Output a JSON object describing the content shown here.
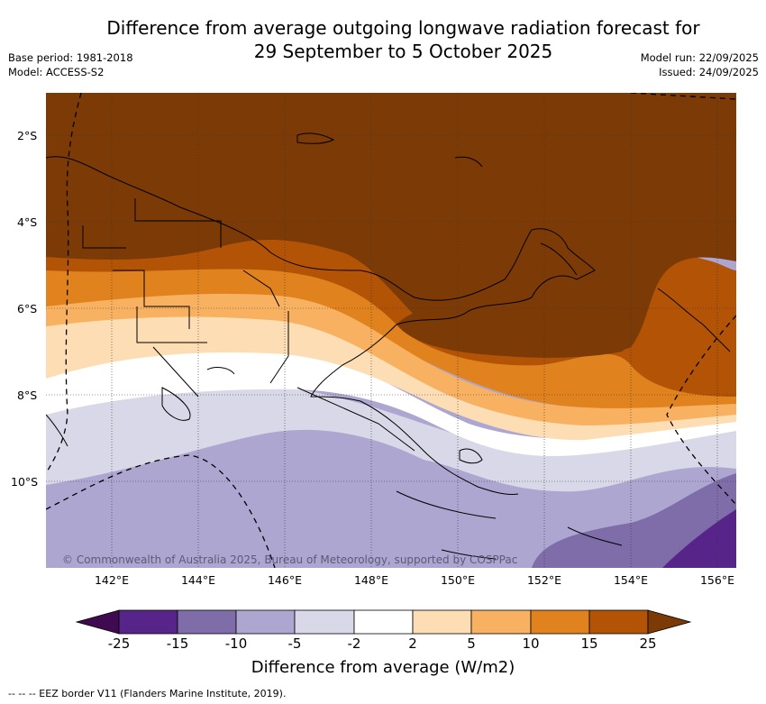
{
  "header": {
    "title_line1": "Difference from average outgoing longwave radiation forecast for",
    "title_line2": "29 September to 5 October 2025",
    "base_period": "Base period: 1981-2018",
    "model": "Model: ACCESS-S2",
    "model_run": "Model run: 22/09/2025",
    "issued": "Issued: 24/09/2025"
  },
  "map": {
    "lat_labels": [
      "2°S",
      "4°S",
      "6°S",
      "8°S",
      "10°S"
    ],
    "lon_labels": [
      "142°E",
      "144°E",
      "146°E",
      "148°E",
      "150°E",
      "152°E",
      "154°E",
      "156°E"
    ],
    "copyright": "© Commonwealth of Australia 2025, Bureau of Meteorology, supported by COSPPac"
  },
  "legend": {
    "tick_labels": [
      "-25",
      "-15",
      "-10",
      "-5",
      "-2",
      "2",
      "5",
      "10",
      "15",
      "25"
    ],
    "bin_colors": [
      "#3f0a4f",
      "#57258a",
      "#7f6daa",
      "#ada6d0",
      "#d8d8e8",
      "#ffffff",
      "#fdddb4",
      "#f8b160",
      "#e0821e",
      "#b25306",
      "#7c3a06"
    ],
    "title": "Difference from average (W/m2)"
  },
  "footer": {
    "eez_note": "--  --  -- EEZ border V11 (Flanders Marine Institute, 2019)."
  }
}
